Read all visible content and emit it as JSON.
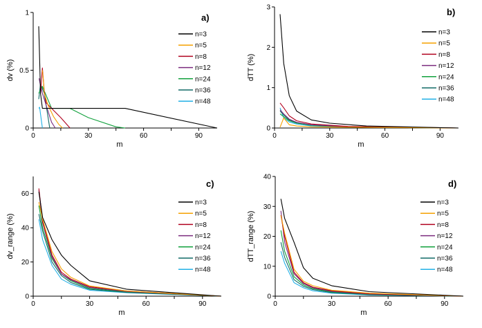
{
  "colors": {
    "n=3": "#000000",
    "n=5": "#f5a000",
    "n=8": "#b0001e",
    "n=12": "#7a2a7e",
    "n=24": "#11a03c",
    "n=36": "#106a66",
    "n=48": "#22b0e6"
  },
  "chart_data": [
    {
      "type": "line",
      "panel_label": "a)",
      "ylabel": "dv (%)",
      "xlabel": "m",
      "xlim": [
        0,
        100
      ],
      "ylim": [
        0,
        1
      ],
      "xticks": [
        0,
        30,
        60,
        90
      ],
      "yticks": [
        0,
        0.5,
        1
      ],
      "ytick_labels": [
        "0",
        "0.5",
        "1"
      ],
      "legend": [
        "n=3",
        "n=5",
        "n=8",
        "n=12",
        "n=24",
        "n=36",
        "n=48"
      ],
      "series": [
        {
          "name": "n=3",
          "x": [
            3,
            3.5,
            4,
            5,
            50,
            100
          ],
          "y": [
            0.88,
            0.6,
            0.3,
            0.17,
            0.17,
            0
          ]
        },
        {
          "name": "n=5",
          "x": [
            5,
            5.5,
            6,
            8,
            11,
            14,
            16
          ],
          "y": [
            0.5,
            0.42,
            0.3,
            0.2,
            0.1,
            0.03,
            0
          ]
        },
        {
          "name": "n=8",
          "x": [
            4,
            5,
            6,
            7,
            10,
            15,
            20
          ],
          "y": [
            0.3,
            0.52,
            0.32,
            0.22,
            0.17,
            0.09,
            0
          ]
        },
        {
          "name": "n=12",
          "x": [
            3.2,
            3.8,
            5,
            7,
            9,
            10,
            12
          ],
          "y": [
            0.43,
            0.38,
            0.3,
            0.2,
            0.1,
            0.05,
            0
          ]
        },
        {
          "name": "n=24",
          "x": [
            3,
            5,
            10,
            20,
            30,
            45,
            50
          ],
          "y": [
            0.3,
            0.36,
            0.17,
            0.17,
            0.09,
            0.01,
            0
          ]
        },
        {
          "name": "n=36",
          "x": [
            3,
            4,
            6,
            8,
            9
          ],
          "y": [
            0.25,
            0.38,
            0.3,
            0.1,
            0
          ]
        },
        {
          "name": "n=48",
          "x": [
            3,
            3.5,
            4,
            5
          ],
          "y": [
            0.17,
            0.18,
            0.12,
            0
          ]
        }
      ]
    },
    {
      "type": "line",
      "panel_label": "b)",
      "ylabel": "dTT (%)",
      "xlabel": "m",
      "xlim": [
        0,
        100
      ],
      "ylim": [
        0,
        3
      ],
      "xticks": [
        0,
        30,
        60,
        90
      ],
      "yticks": [
        0,
        1,
        2,
        3
      ],
      "ytick_labels": [
        "0",
        "1",
        "2",
        "3"
      ],
      "legend": [
        "n=3",
        "n=5",
        "n=8",
        "n=12",
        "n=24",
        "n=36",
        "n=48"
      ],
      "series": [
        {
          "name": "n=3",
          "x": [
            3,
            5,
            8,
            12,
            20,
            30,
            50,
            100
          ],
          "y": [
            2.82,
            1.6,
            0.8,
            0.42,
            0.2,
            0.12,
            0.05,
            0
          ]
        },
        {
          "name": "n=5",
          "x": [
            3,
            5,
            8,
            12,
            20,
            40,
            100
          ],
          "y": [
            0.02,
            0.25,
            0.08,
            0.05,
            0.03,
            0.02,
            0
          ]
        },
        {
          "name": "n=8",
          "x": [
            3,
            5,
            8,
            12,
            20,
            40,
            100
          ],
          "y": [
            0.62,
            0.5,
            0.3,
            0.18,
            0.1,
            0.04,
            0
          ]
        },
        {
          "name": "n=12",
          "x": [
            3,
            5,
            8,
            12,
            20,
            40,
            100
          ],
          "y": [
            0.45,
            0.35,
            0.22,
            0.14,
            0.08,
            0.03,
            0
          ]
        },
        {
          "name": "n=24",
          "x": [
            3,
            5,
            8,
            12,
            20,
            40,
            100
          ],
          "y": [
            0.35,
            0.28,
            0.18,
            0.12,
            0.07,
            0.03,
            0
          ]
        },
        {
          "name": "n=36",
          "x": [
            3,
            5,
            8,
            12,
            20,
            40,
            100
          ],
          "y": [
            0.42,
            0.32,
            0.2,
            0.13,
            0.07,
            0.03,
            0
          ]
        },
        {
          "name": "n=48",
          "x": [
            3,
            5,
            8,
            12,
            20,
            40,
            100
          ],
          "y": [
            0.5,
            0.25,
            0.15,
            0.1,
            0.05,
            0.02,
            0
          ]
        }
      ]
    },
    {
      "type": "line",
      "panel_label": "c)",
      "ylabel": "dv_range (%)",
      "xlabel": "m",
      "xlim": [
        0,
        100
      ],
      "ylim": [
        0,
        70
      ],
      "xticks": [
        0,
        30,
        60,
        90
      ],
      "yticks": [
        0,
        20,
        40,
        60
      ],
      "ytick_labels": [
        "0",
        "20",
        "40",
        "60"
      ],
      "legend": [
        "n=3",
        "n=5",
        "n=8",
        "n=12",
        "n=24",
        "n=36",
        "n=48"
      ],
      "series": [
        {
          "name": "n=3",
          "x": [
            3,
            5,
            10,
            15,
            20,
            30,
            50,
            100
          ],
          "y": [
            61,
            46,
            33,
            24,
            18,
            9,
            4,
            0
          ]
        },
        {
          "name": "n=5",
          "x": [
            3,
            5,
            10,
            15,
            20,
            30,
            50,
            100
          ],
          "y": [
            55,
            45,
            26,
            16,
            11,
            6,
            3,
            0
          ]
        },
        {
          "name": "n=8",
          "x": [
            3,
            5,
            10,
            15,
            20,
            30,
            50,
            100
          ],
          "y": [
            63,
            44,
            24,
            14,
            10,
            5.5,
            3,
            0
          ]
        },
        {
          "name": "n=12",
          "x": [
            3,
            5,
            10,
            15,
            20,
            30,
            50,
            100
          ],
          "y": [
            62,
            43,
            23,
            13,
            9.5,
            5,
            2.7,
            0
          ]
        },
        {
          "name": "n=24",
          "x": [
            3,
            5,
            10,
            15,
            20,
            30,
            50,
            100
          ],
          "y": [
            53,
            40,
            22,
            13,
            9,
            4.5,
            2.5,
            0
          ]
        },
        {
          "name": "n=36",
          "x": [
            3,
            5,
            10,
            15,
            20,
            30,
            50,
            100
          ],
          "y": [
            48,
            38,
            20,
            12,
            8,
            4,
            2.2,
            0
          ]
        },
        {
          "name": "n=48",
          "x": [
            3,
            5,
            10,
            15,
            20,
            30,
            50,
            100
          ],
          "y": [
            45,
            33,
            18,
            10,
            7,
            3.5,
            2,
            0
          ]
        }
      ]
    },
    {
      "type": "line",
      "panel_label": "d)",
      "ylabel": "dTT_range (%)",
      "xlabel": "m",
      "xlim": [
        0,
        100
      ],
      "ylim": [
        0,
        40
      ],
      "xticks": [
        0,
        30,
        60,
        90
      ],
      "yticks": [
        0,
        10,
        20,
        30,
        40
      ],
      "ytick_labels": [
        "0",
        "10",
        "20",
        "30",
        "40"
      ],
      "legend": [
        "n=3",
        "n=5",
        "n=8",
        "n=12",
        "n=24",
        "n=36",
        "n=48"
      ],
      "series": [
        {
          "name": "n=3",
          "x": [
            3,
            5,
            10,
            15,
            20,
            30,
            50,
            100
          ],
          "y": [
            32.5,
            26,
            18,
            9.5,
            6,
            3.5,
            1.5,
            0
          ]
        },
        {
          "name": "n=5",
          "x": [
            3,
            5,
            10,
            15,
            20,
            30,
            50,
            100
          ],
          "y": [
            27,
            21,
            9,
            5,
            3.5,
            2,
            1,
            0
          ]
        },
        {
          "name": "n=8",
          "x": [
            3,
            5,
            10,
            15,
            20,
            30,
            50,
            100
          ],
          "y": [
            27,
            20,
            8,
            4.5,
            3,
            1.8,
            0.8,
            0
          ]
        },
        {
          "name": "n=12",
          "x": [
            3,
            5,
            10,
            15,
            20,
            30,
            50,
            100
          ],
          "y": [
            28.5,
            18,
            7.5,
            4.2,
            2.8,
            1.6,
            0.7,
            0
          ]
        },
        {
          "name": "n=24",
          "x": [
            3,
            5,
            10,
            15,
            20,
            30,
            50,
            100
          ],
          "y": [
            22,
            15,
            6.5,
            3.8,
            2.5,
            1.4,
            0.6,
            0
          ]
        },
        {
          "name": "n=36",
          "x": [
            3,
            5,
            10,
            15,
            20,
            30,
            50,
            100
          ],
          "y": [
            18,
            13,
            5.5,
            3.3,
            2.2,
            1.2,
            0.5,
            0
          ]
        },
        {
          "name": "n=48",
          "x": [
            3,
            5,
            10,
            15,
            20,
            30,
            50,
            100
          ],
          "y": [
            15,
            11,
            4.5,
            2.8,
            1.8,
            1,
            0.4,
            0
          ]
        }
      ]
    }
  ]
}
